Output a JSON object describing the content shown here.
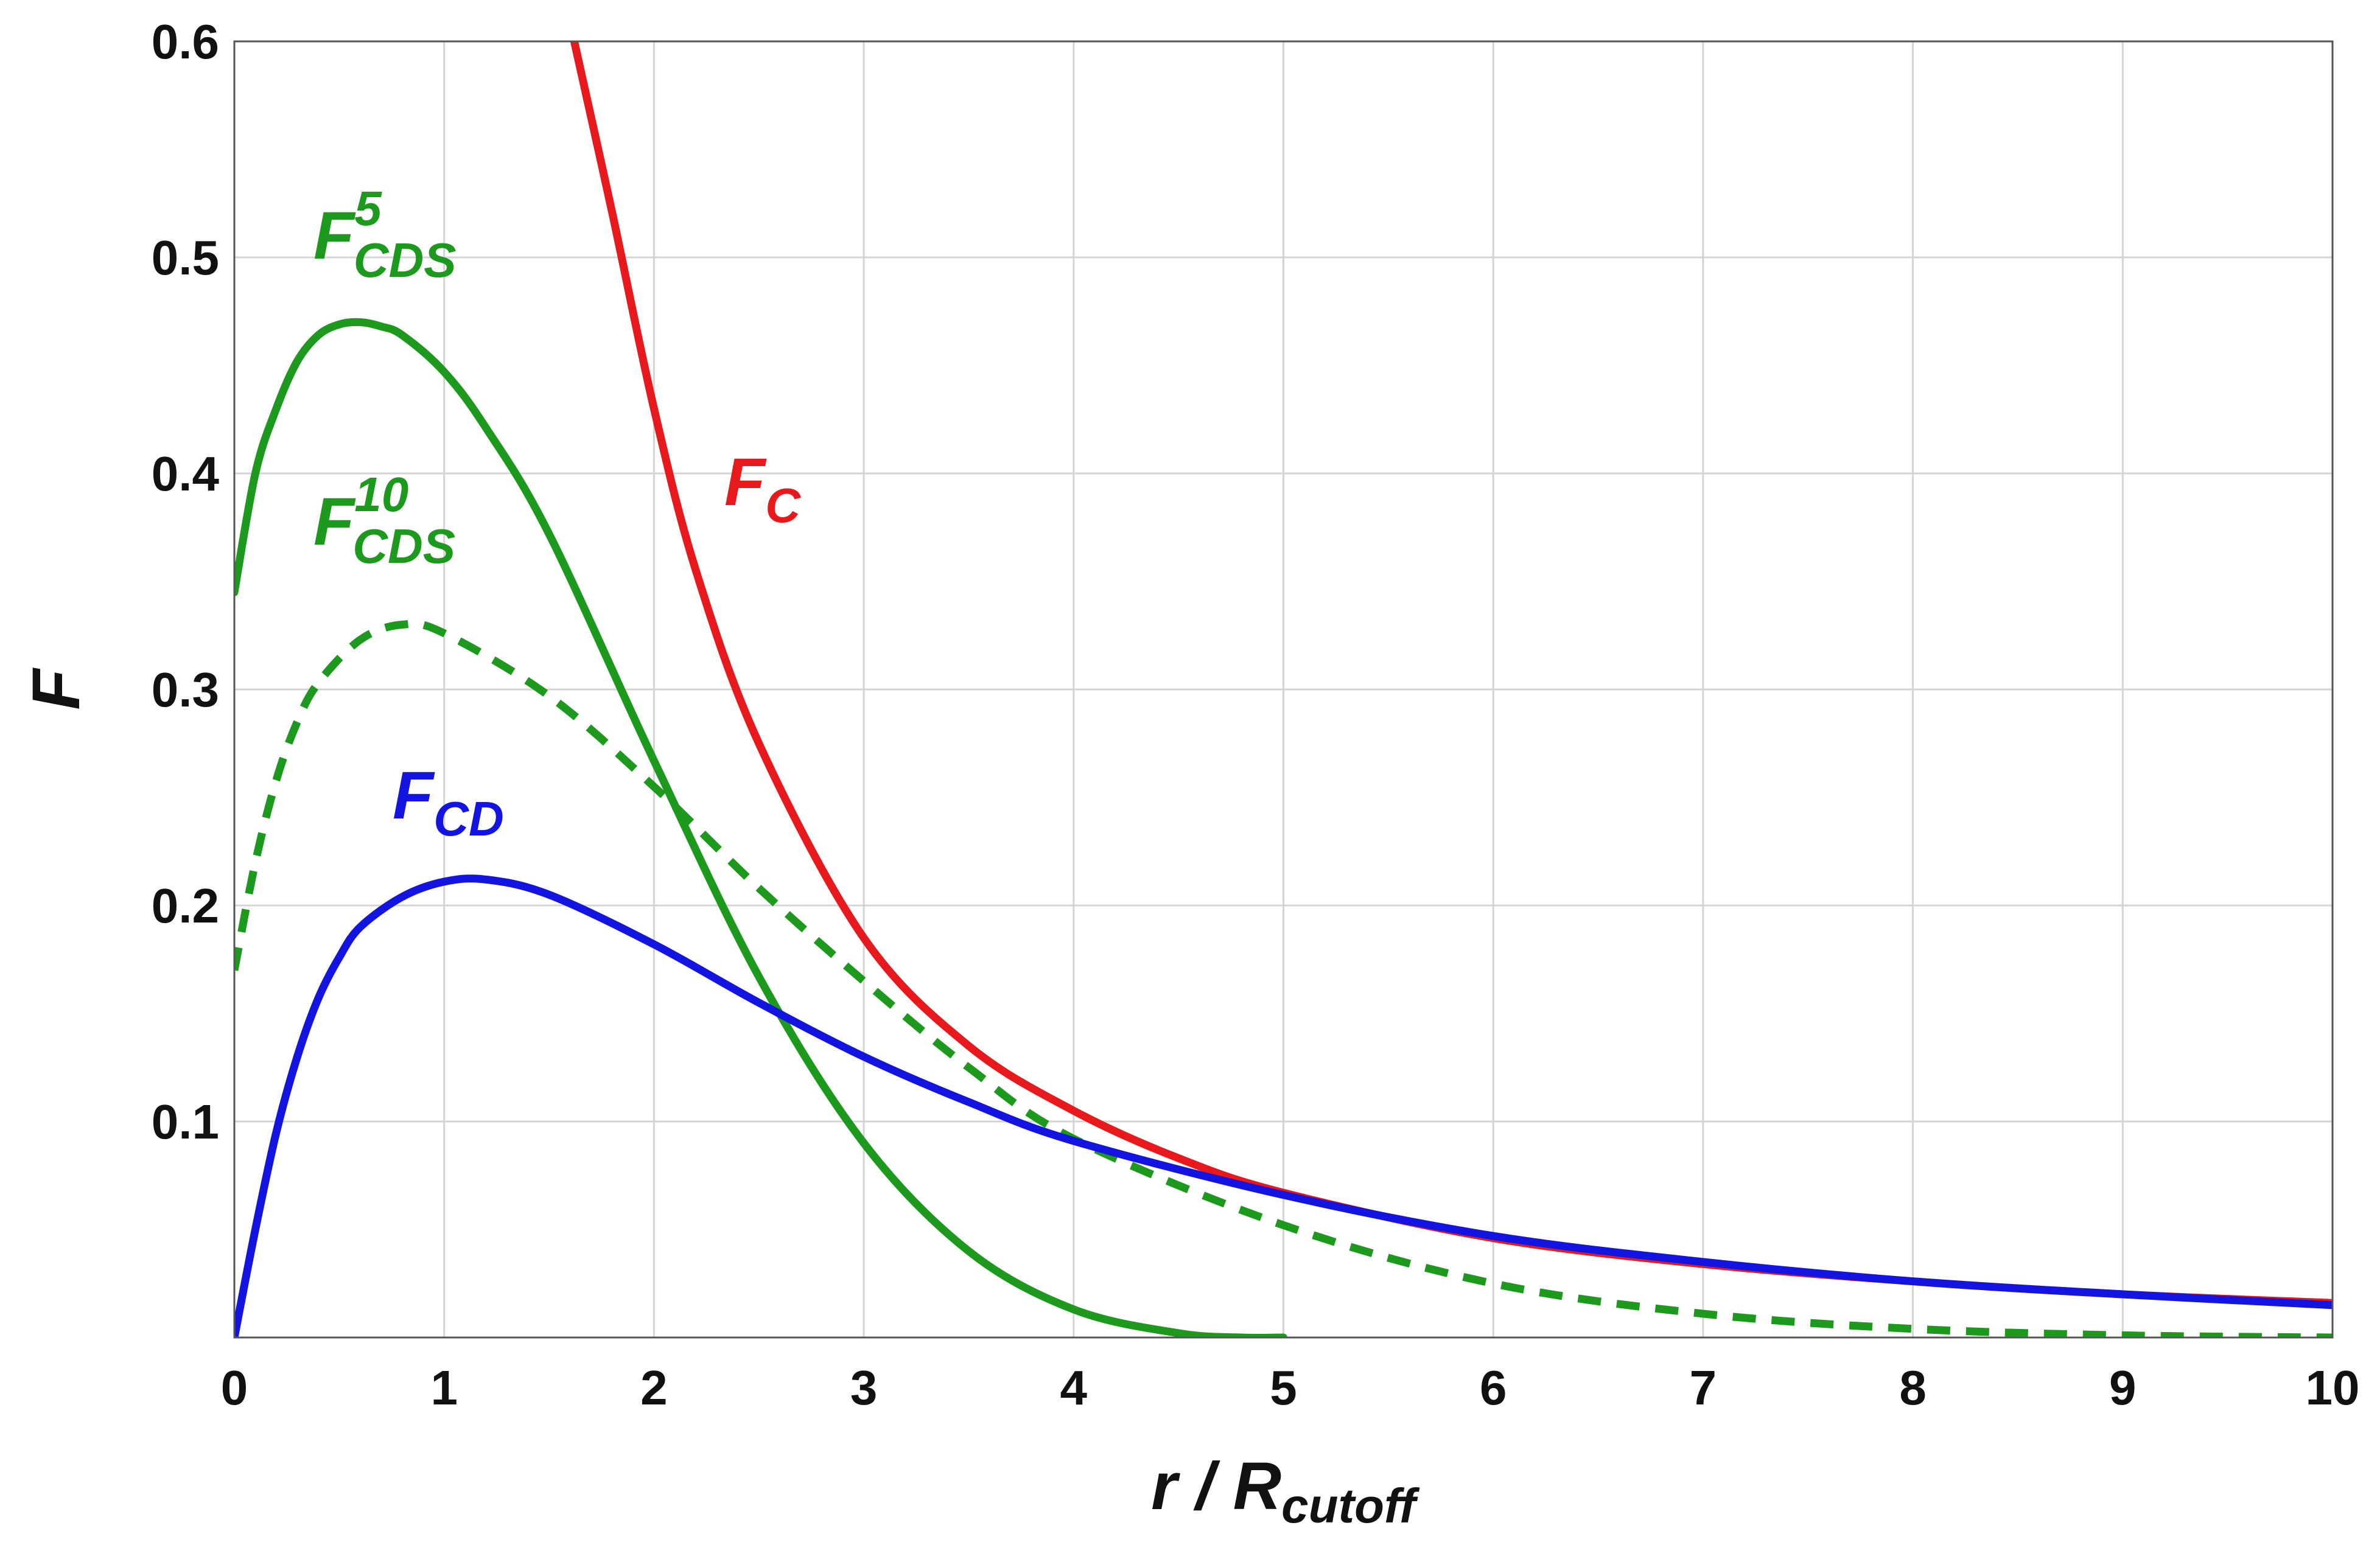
{
  "chart_data": {
    "type": "line",
    "xlabel": {
      "main": "r / R",
      "sub": "cutoff"
    },
    "ylabel": "F",
    "xlim": [
      0,
      10
    ],
    "ylim": [
      0,
      0.6
    ],
    "x_ticks": [
      "0",
      "1",
      "2",
      "3",
      "4",
      "5",
      "6",
      "7",
      "8",
      "9",
      "10"
    ],
    "y_ticks": [
      "0.1",
      "0.2",
      "0.3",
      "0.4",
      "0.5",
      "0.6"
    ],
    "grid": true,
    "series": [
      {
        "name": "F_C",
        "label": {
          "base": "F",
          "sub": "C",
          "sup": ""
        },
        "color": "#e8191c",
        "style": "solid",
        "x": [
          1.62,
          1.8,
          2.0,
          2.2,
          2.5,
          3.0,
          3.5,
          4.0,
          4.5,
          5.0,
          6.0,
          7.0,
          8.0,
          9.0,
          10.0
        ],
        "y": [
          0.6,
          0.521,
          0.43,
          0.355,
          0.275,
          0.185,
          0.135,
          0.105,
          0.083,
          0.067,
          0.046,
          0.034,
          0.026,
          0.02,
          0.016
        ]
      },
      {
        "name": "F_CDS^5",
        "label": {
          "base": "F",
          "sub": "CDS",
          "sup": "5"
        },
        "color": "#1d9a1d",
        "style": "solid",
        "x": [
          0.0,
          0.1,
          0.2,
          0.3,
          0.4,
          0.5,
          0.6,
          0.7,
          0.8,
          1.0,
          1.2,
          1.5,
          2.0,
          2.5,
          3.0,
          3.5,
          4.0,
          4.5,
          4.8,
          5.0
        ],
        "y": [
          0.345,
          0.4,
          0.43,
          0.452,
          0.464,
          0.469,
          0.47,
          0.468,
          0.464,
          0.447,
          0.421,
          0.372,
          0.267,
          0.167,
          0.09,
          0.04,
          0.013,
          0.002,
          0.0,
          0.0
        ]
      },
      {
        "name": "F_CDS^10",
        "label": {
          "base": "F",
          "sub": "CDS",
          "sup": "10"
        },
        "color": "#1d9a1d",
        "style": "dashed",
        "x": [
          0.0,
          0.1,
          0.2,
          0.3,
          0.4,
          0.6,
          0.8,
          1.0,
          1.5,
          2.0,
          2.5,
          3.0,
          3.5,
          4.0,
          5.0,
          6.0,
          7.0,
          8.0,
          9.0,
          10.0
        ],
        "y": [
          0.17,
          0.22,
          0.258,
          0.285,
          0.303,
          0.323,
          0.33,
          0.326,
          0.297,
          0.255,
          0.208,
          0.165,
          0.125,
          0.092,
          0.052,
          0.025,
          0.011,
          0.004,
          0.001,
          0.0
        ]
      },
      {
        "name": "F_CD",
        "label": {
          "base": "F",
          "sub": "CD",
          "sup": ""
        },
        "color": "#1414e0",
        "style": "solid",
        "x": [
          0.0,
          0.1,
          0.2,
          0.3,
          0.4,
          0.5,
          0.6,
          0.8,
          1.0,
          1.2,
          1.5,
          2.0,
          2.5,
          3.0,
          3.5,
          4.0,
          5.0,
          6.0,
          7.0,
          8.0,
          9.0,
          10.0
        ],
        "y": [
          0.0,
          0.05,
          0.095,
          0.13,
          0.157,
          0.176,
          0.19,
          0.204,
          0.211,
          0.212,
          0.205,
          0.182,
          0.155,
          0.13,
          0.109,
          0.091,
          0.066,
          0.047,
          0.035,
          0.026,
          0.02,
          0.015
        ]
      }
    ]
  }
}
